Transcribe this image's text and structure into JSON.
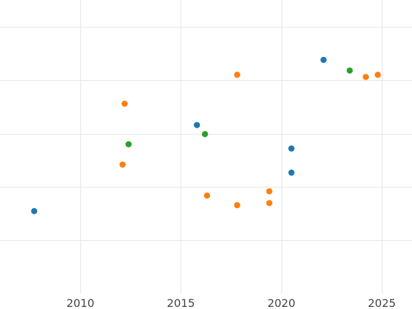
{
  "chart_data": {
    "type": "scatter",
    "title": "",
    "xlabel": "",
    "ylabel": "",
    "xlim": [
      2006,
      2026.5
    ],
    "ylim": [
      0,
      5.5
    ],
    "x_ticks": [
      2010,
      2015,
      2020,
      2025
    ],
    "y_gridlines": [
      1,
      2,
      3,
      4,
      5
    ],
    "grid": true,
    "legend": "none",
    "series": [
      {
        "color": "#1f77b4",
        "points": [
          {
            "x": 2007.7,
            "y": 1.55
          },
          {
            "x": 2015.8,
            "y": 3.16
          },
          {
            "x": 2020.5,
            "y": 2.72
          },
          {
            "x": 2020.5,
            "y": 2.27
          },
          {
            "x": 2022.1,
            "y": 4.38
          }
        ]
      },
      {
        "color": "#ff7f0e",
        "points": [
          {
            "x": 2012.1,
            "y": 2.42
          },
          {
            "x": 2012.2,
            "y": 3.56
          },
          {
            "x": 2016.3,
            "y": 1.84
          },
          {
            "x": 2017.8,
            "y": 4.1
          },
          {
            "x": 2017.8,
            "y": 1.66
          },
          {
            "x": 2019.4,
            "y": 1.92
          },
          {
            "x": 2019.4,
            "y": 1.7
          },
          {
            "x": 2024.2,
            "y": 4.06
          },
          {
            "x": 2024.8,
            "y": 4.1
          }
        ]
      },
      {
        "color": "#2ca02c",
        "points": [
          {
            "x": 2012.4,
            "y": 2.8
          },
          {
            "x": 2016.2,
            "y": 2.99
          },
          {
            "x": 2023.4,
            "y": 4.18
          }
        ]
      }
    ]
  }
}
